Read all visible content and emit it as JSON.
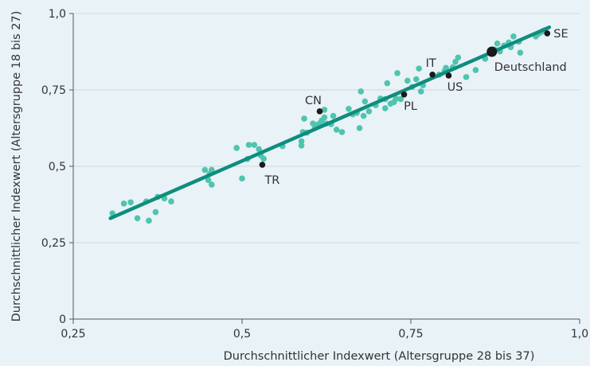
{
  "chart_data": {
    "type": "scatter",
    "title": "",
    "xlabel": "Durchschnittlicher Indexwert (Altersgruppe 28 bis 37)",
    "ylabel": "Durchschnittlicher Indexwert (Altersgruppe 18 bis 27)",
    "xlim": [
      0.25,
      1.0
    ],
    "ylim": [
      0,
      1.0
    ],
    "x_ticks": [
      {
        "value": 0.25,
        "label": "0,25"
      },
      {
        "value": 0.5,
        "label": "0,5"
      },
      {
        "value": 0.75,
        "label": "0,75"
      },
      {
        "value": 1.0,
        "label": "1,0"
      }
    ],
    "y_ticks": [
      {
        "value": 0,
        "label": "0"
      },
      {
        "value": 0.25,
        "label": "0,25"
      },
      {
        "value": 0.5,
        "label": "0,5"
      },
      {
        "value": 0.75,
        "label": "0,75"
      },
      {
        "value": 1.0,
        "label": "1,0"
      }
    ],
    "grid": "horizontal",
    "colors": {
      "points": "#4fc4ae",
      "trend": "#0f8d7e",
      "highlight": "#1a1a1a",
      "grid": "#cfd8de",
      "axis": "#555555",
      "text": "#333333"
    },
    "trendline": {
      "x": [
        0.305,
        0.955
      ],
      "y": [
        0.33,
        0.955
      ]
    },
    "points": [
      [
        0.308,
        0.346
      ],
      [
        0.325,
        0.378
      ],
      [
        0.335,
        0.382
      ],
      [
        0.345,
        0.33
      ],
      [
        0.358,
        0.385
      ],
      [
        0.362,
        0.322
      ],
      [
        0.372,
        0.35
      ],
      [
        0.375,
        0.4
      ],
      [
        0.385,
        0.395
      ],
      [
        0.395,
        0.385
      ],
      [
        0.445,
        0.488
      ],
      [
        0.45,
        0.455
      ],
      [
        0.452,
        0.475
      ],
      [
        0.455,
        0.44
      ],
      [
        0.455,
        0.488
      ],
      [
        0.492,
        0.56
      ],
      [
        0.5,
        0.46
      ],
      [
        0.508,
        0.524
      ],
      [
        0.51,
        0.57
      ],
      [
        0.518,
        0.57
      ],
      [
        0.525,
        0.556
      ],
      [
        0.528,
        0.535
      ],
      [
        0.532,
        0.525
      ],
      [
        0.56,
        0.566
      ],
      [
        0.588,
        0.582
      ],
      [
        0.588,
        0.568
      ],
      [
        0.59,
        0.612
      ],
      [
        0.592,
        0.656
      ],
      [
        0.596,
        0.61
      ],
      [
        0.605,
        0.64
      ],
      [
        0.608,
        0.625
      ],
      [
        0.612,
        0.636
      ],
      [
        0.616,
        0.642
      ],
      [
        0.618,
        0.65
      ],
      [
        0.622,
        0.66
      ],
      [
        0.622,
        0.685
      ],
      [
        0.625,
        0.64
      ],
      [
        0.632,
        0.638
      ],
      [
        0.635,
        0.665
      ],
      [
        0.64,
        0.62
      ],
      [
        0.648,
        0.612
      ],
      [
        0.658,
        0.688
      ],
      [
        0.664,
        0.67
      ],
      [
        0.67,
        0.675
      ],
      [
        0.674,
        0.625
      ],
      [
        0.676,
        0.745
      ],
      [
        0.68,
        0.665
      ],
      [
        0.682,
        0.712
      ],
      [
        0.688,
        0.68
      ],
      [
        0.698,
        0.7
      ],
      [
        0.705,
        0.722
      ],
      [
        0.712,
        0.72
      ],
      [
        0.712,
        0.69
      ],
      [
        0.715,
        0.772
      ],
      [
        0.72,
        0.705
      ],
      [
        0.725,
        0.71
      ],
      [
        0.728,
        0.722
      ],
      [
        0.73,
        0.805
      ],
      [
        0.735,
        0.72
      ],
      [
        0.745,
        0.78
      ],
      [
        0.752,
        0.76
      ],
      [
        0.758,
        0.785
      ],
      [
        0.762,
        0.82
      ],
      [
        0.765,
        0.745
      ],
      [
        0.768,
        0.765
      ],
      [
        0.792,
        0.8
      ],
      [
        0.8,
        0.812
      ],
      [
        0.802,
        0.822
      ],
      [
        0.812,
        0.824
      ],
      [
        0.816,
        0.842
      ],
      [
        0.82,
        0.856
      ],
      [
        0.832,
        0.792
      ],
      [
        0.846,
        0.815
      ],
      [
        0.86,
        0.852
      ],
      [
        0.874,
        0.882
      ],
      [
        0.878,
        0.902
      ],
      [
        0.882,
        0.876
      ],
      [
        0.888,
        0.895
      ],
      [
        0.895,
        0.905
      ],
      [
        0.898,
        0.89
      ],
      [
        0.902,
        0.925
      ],
      [
        0.91,
        0.908
      ],
      [
        0.912,
        0.872
      ],
      [
        0.935,
        0.925
      ],
      [
        0.938,
        0.932
      ],
      [
        0.942,
        0.938
      ],
      [
        0.945,
        0.942
      ],
      [
        0.948,
        0.945
      ]
    ],
    "highlights": [
      {
        "label": "SE",
        "x": 0.952,
        "y": 0.935,
        "anchor": "right",
        "big": false
      },
      {
        "label": "Deutschland",
        "x": 0.87,
        "y": 0.875,
        "anchor": "below-right",
        "big": true
      },
      {
        "label": "IT",
        "x": 0.782,
        "y": 0.8,
        "anchor": "above",
        "big": false
      },
      {
        "label": "US",
        "x": 0.806,
        "y": 0.797,
        "anchor": "below",
        "big": false
      },
      {
        "label": "PL",
        "x": 0.74,
        "y": 0.735,
        "anchor": "below",
        "big": false
      },
      {
        "label": "CN",
        "x": 0.615,
        "y": 0.68,
        "anchor": "above-left",
        "big": false
      },
      {
        "label": "TR",
        "x": 0.53,
        "y": 0.505,
        "anchor": "below-right",
        "big": false
      }
    ]
  }
}
